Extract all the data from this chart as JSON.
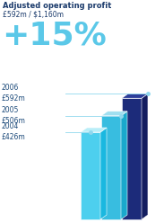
{
  "title_line1": "Adjusted operating profit",
  "title_line2": "£592m / $1,160m",
  "big_text": "+15%",
  "background_color": "#ffffff",
  "bar_light_front": "#4dcfee",
  "bar_light_side": "#1ab8e0",
  "bar_light_top": "#b8eef8",
  "bar_mid_front": "#38bde0",
  "bar_mid_side": "#1aa8cc",
  "bar_mid_top": "#a0dff0",
  "bar_dark_front": "#1c2b7a",
  "bar_dark_side": "#141e60",
  "bar_dark_top": "#2d3e9a",
  "years": [
    "2006",
    "2005",
    "2004"
  ],
  "values_gbp": [
    "£592m",
    "£506m",
    "£426m"
  ],
  "values": [
    592,
    506,
    426
  ],
  "max_val": 650,
  "title_color": "#1a3a6b",
  "label_color": "#1c4a7a",
  "big_text_color": "#5bc8e8",
  "line_color": "#90d8ee",
  "dot_color": "#90d8ee"
}
